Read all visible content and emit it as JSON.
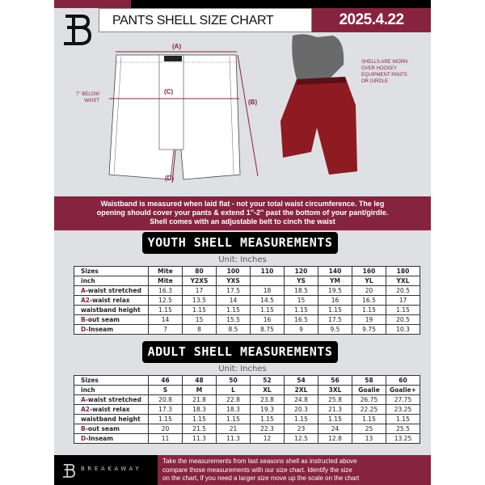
{
  "header": {
    "title": "PANTS SHELL SIZE CHART",
    "date": "2025.4.22",
    "brand": "B"
  },
  "diagram": {
    "label_a": "(A)",
    "label_b": "(B)",
    "label_c": "(C)",
    "label_d": "(D)",
    "below_waist": [
      "7'' BELOW",
      "WAIST"
    ],
    "note": [
      "SHELLS ARE WORN",
      "OVER HOCKEY",
      "EQUIPMENT PANTS",
      "OR GIRDLE"
    ]
  },
  "info_band": [
    "Waistband is measured when laid flat - not your total waist circumference. The leg",
    "opening should cover your pants & extend 1''-2'' past the bottom of your pant/girdle.",
    "Shell comes with an adjustable belt to cinch the waist"
  ],
  "youth": {
    "title": "YOUTH SHELL MEASUREMENTS",
    "unit": "Unit: Inches",
    "rows": [
      {
        "label": "Sizes",
        "values": [
          "Mite",
          "80",
          "100",
          "110",
          "120",
          "140",
          "160",
          "180"
        ]
      },
      {
        "label": "inch",
        "values": [
          "Mite",
          "Y2XS",
          "YXS",
          "",
          "YS",
          "YM",
          "YL",
          "YXL"
        ]
      },
      {
        "prefix": "A",
        "label": "-waist stretched",
        "values": [
          "16.3",
          "17",
          "17.5",
          "18",
          "18.5",
          "19.5",
          "20",
          "20.5"
        ]
      },
      {
        "prefix": "A2",
        "label": "-waist relax",
        "values": [
          "12.5",
          "13.5",
          "14",
          "14.5",
          "15",
          "16",
          "16.5",
          "17"
        ]
      },
      {
        "label": "waistband height",
        "values": [
          "1.15",
          "1.15",
          "1.15",
          "1.15",
          "1.15",
          "1.15",
          "1.15",
          "1.15"
        ]
      },
      {
        "prefix": "B",
        "label": "-out seam",
        "values": [
          "14",
          "15",
          "15.5",
          "16",
          "16.5",
          "17.5",
          "19",
          "20.5"
        ]
      },
      {
        "prefix": "D",
        "label": "-Inseam",
        "values": [
          "7",
          "8",
          "8.5",
          "8.75",
          "9",
          "9.5",
          "9.75",
          "10.3"
        ]
      }
    ]
  },
  "adult": {
    "title": "ADULT SHELL MEASUREMENTS",
    "unit": "Unit: Inches",
    "rows": [
      {
        "label": "Sizes",
        "values": [
          "46",
          "48",
          "50",
          "52",
          "54",
          "56",
          "58",
          "60"
        ]
      },
      {
        "label": "inch",
        "values": [
          "S",
          "M",
          "L",
          "XL",
          "2XL",
          "3XL",
          "Goalie",
          "Goalie+"
        ]
      },
      {
        "prefix": "A",
        "label": "-waist stretched",
        "values": [
          "20.8",
          "21.8",
          "22.8",
          "23.8",
          "24.8",
          "25.8",
          "26.75",
          "27.75"
        ]
      },
      {
        "prefix": "A2",
        "label": "-waist relax",
        "values": [
          "17.3",
          "18.3",
          "18.3",
          "19.3",
          "20.3",
          "21.3",
          "22.25",
          "23.25"
        ]
      },
      {
        "label": "waistband height",
        "values": [
          "1.15",
          "1.15",
          "1.15",
          "1.15",
          "1.15",
          "1.15",
          "1.15",
          "1.15"
        ]
      },
      {
        "prefix": "B",
        "label": "-out seam",
        "values": [
          "20",
          "21.5",
          "21",
          "22.3",
          "23",
          "24",
          "25",
          "25.5"
        ]
      },
      {
        "prefix": "D",
        "label": "-Inseam",
        "values": [
          "11",
          "11.3",
          "11.3",
          "12",
          "12.5",
          "12.8",
          "13",
          "13.25"
        ]
      }
    ]
  },
  "footer": {
    "brand": "BREAKAWAY",
    "text": [
      "Take the measurements from last seasons shell as instructed above",
      "compare those measurements  with our size chart. Identify the size",
      "on the chart, if you need a larger size move up the scale on the chart"
    ]
  },
  "colors": {
    "accent": "#862440",
    "dark": "#000000",
    "background": "#dfe0e3"
  }
}
